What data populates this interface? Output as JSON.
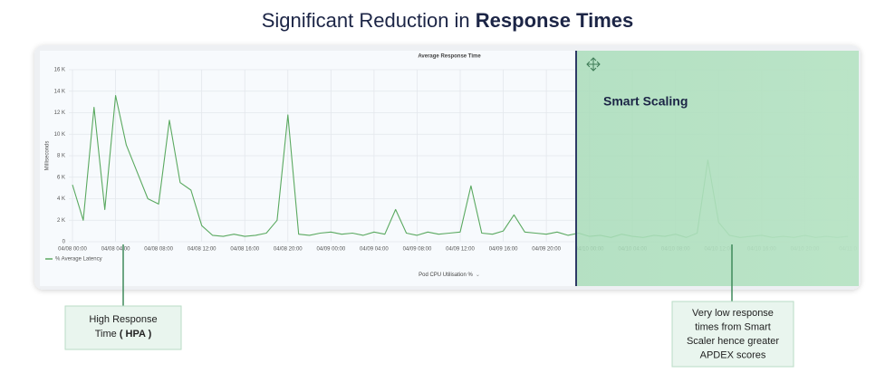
{
  "header": {
    "title": "Significant Reduction in",
    "title_emphasis": "Response Times"
  },
  "chart_data": {
    "type": "line",
    "title": "Average Response Time",
    "y_label": "Milliseconds",
    "footer": "Pod CPU Utilisation %",
    "categories": [
      "04/08 00:00",
      null,
      null,
      null,
      "04/08 04:00",
      null,
      null,
      null,
      "04/08 08:00",
      null,
      null,
      null,
      "04/08 12:00",
      null,
      null,
      null,
      "04/08 16:00",
      null,
      null,
      null,
      "04/08 20:00",
      null,
      null,
      null,
      "04/09 00:00",
      null,
      null,
      null,
      "04/09 04:00",
      null,
      null,
      null,
      "04/09 08:00",
      null,
      null,
      null,
      "04/09 12:00",
      null,
      null,
      null,
      "04/09 16:00",
      null,
      null,
      null,
      "04/09 20:00",
      null,
      null,
      null,
      "04/10 00:00",
      null,
      null,
      null,
      "04/10 04:00",
      null,
      null,
      null,
      "04/10 08:00",
      null,
      null,
      null,
      "04/10 12:00",
      null,
      null,
      null,
      "04/10 16:00",
      null,
      null,
      null,
      "04/10 20:00",
      null,
      null,
      null,
      "04/11 0"
    ],
    "series": [
      {
        "name": "% Average Latency",
        "color": "#5aa960",
        "values": [
          5300,
          2000,
          12500,
          3000,
          13600,
          9000,
          6500,
          4000,
          3500,
          11300,
          5500,
          4800,
          1500,
          600,
          500,
          700,
          500,
          600,
          800,
          2000,
          11800,
          700,
          600,
          800,
          900,
          700,
          800,
          600,
          900,
          700,
          3000,
          800,
          600,
          900,
          700,
          800,
          900,
          5200,
          800,
          700,
          1000,
          2500,
          900,
          800,
          700,
          900,
          600,
          800,
          500,
          600,
          400,
          700,
          500,
          400,
          600,
          500,
          700,
          400,
          800,
          7600,
          1800,
          600,
          400,
          500,
          600,
          400,
          500,
          400,
          600,
          400,
          500,
          400,
          500
        ]
      }
    ],
    "ylim": [
      0,
      16000
    ],
    "yticks": [
      {
        "value": 0,
        "label": "0"
      },
      {
        "value": 2000,
        "label": "2 K"
      },
      {
        "value": 4000,
        "label": "4 K"
      },
      {
        "value": 6000,
        "label": "6 K"
      },
      {
        "value": 8000,
        "label": "8 K"
      },
      {
        "value": 10000,
        "label": "10 K"
      },
      {
        "value": 12000,
        "label": "12 K"
      },
      {
        "value": 14000,
        "label": "14 K"
      },
      {
        "value": 16000,
        "label": "16 K"
      }
    ],
    "grid": true,
    "legend": "bottom-left"
  },
  "annotations": {
    "region_label": "Smart Scaling",
    "hpa_note": {
      "line1": "High Response",
      "line2": "Time",
      "emphasis": "( HPA )"
    },
    "smart_note": [
      "Very low response",
      "times from Smart",
      "Scaler hence greater",
      "APDEX scores"
    ]
  }
}
